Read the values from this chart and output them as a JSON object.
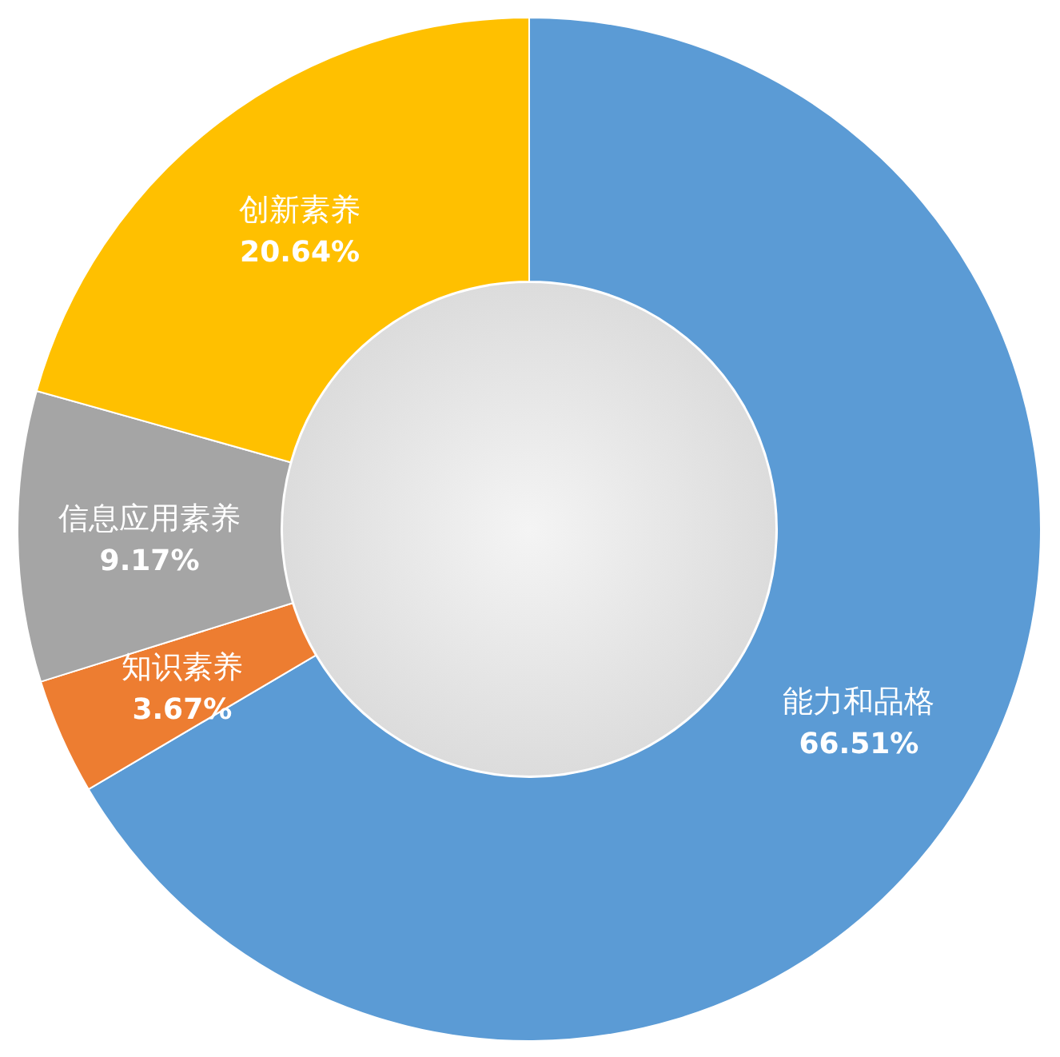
{
  "chart_data": {
    "type": "donut",
    "categories": [
      "能力和品格",
      "知识素养",
      "信息应用素养",
      "创新素养"
    ],
    "values": [
      66.51,
      3.67,
      9.17,
      20.64
    ],
    "colors": [
      "#5b9bd5",
      "#ed7d31",
      "#a5a5a5",
      "#ffc000"
    ],
    "value_labels": [
      "66.51%",
      "3.67%",
      "9.17%",
      "20.64%"
    ]
  }
}
